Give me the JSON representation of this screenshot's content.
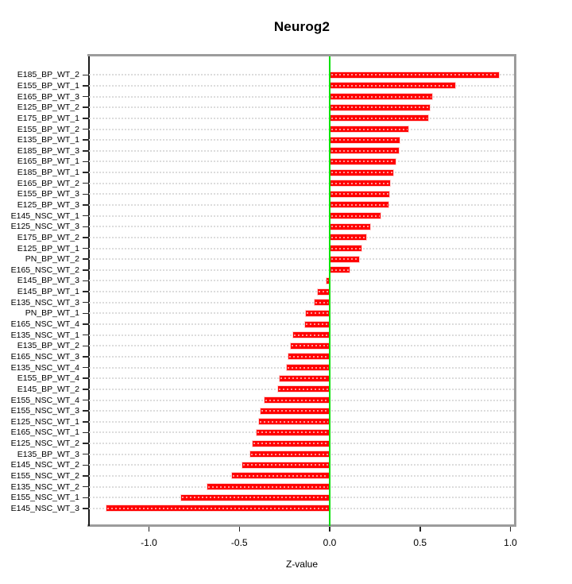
{
  "chart_data": {
    "type": "bar",
    "orientation": "horizontal",
    "title": "Neurog2",
    "xlabel": "Z-value",
    "bar_color": "#ff0000",
    "zero_line_color": "#00e100",
    "grid": "dotted-horizontal",
    "xlim": [
      -1.33,
      1.02
    ],
    "x_tick_values": [
      -1.0,
      -0.5,
      0.0,
      0.5,
      1.0
    ],
    "x_tick_labels": [
      "-1.0",
      "-0.5",
      "0.0",
      "0.5",
      "1.0"
    ],
    "categories": [
      "E185_BP_WT_2",
      "E155_BP_WT_1",
      "E165_BP_WT_3",
      "E125_BP_WT_2",
      "E175_BP_WT_1",
      "E155_BP_WT_2",
      "E135_BP_WT_1",
      "E185_BP_WT_3",
      "E165_BP_WT_1",
      "E185_BP_WT_1",
      "E165_BP_WT_2",
      "E155_BP_WT_3",
      "E125_BP_WT_3",
      "E145_NSC_WT_1",
      "E125_NSC_WT_3",
      "E175_BP_WT_2",
      "E125_BP_WT_1",
      "PN_BP_WT_2",
      "E165_NSC_WT_2",
      "E145_BP_WT_3",
      "E145_BP_WT_1",
      "E135_NSC_WT_3",
      "PN_BP_WT_1",
      "E165_NSC_WT_4",
      "E135_NSC_WT_1",
      "E135_BP_WT_2",
      "E165_NSC_WT_3",
      "E135_NSC_WT_4",
      "E155_BP_WT_4",
      "E145_BP_WT_2",
      "E155_NSC_WT_4",
      "E155_NSC_WT_3",
      "E125_NSC_WT_1",
      "E165_NSC_WT_1",
      "E125_NSC_WT_2",
      "E135_BP_WT_3",
      "E145_NSC_WT_2",
      "E155_NSC_WT_2",
      "E135_NSC_WT_2",
      "E155_NSC_WT_1",
      "E145_NSC_WT_3"
    ],
    "values": [
      0.94,
      0.7,
      0.57,
      0.56,
      0.55,
      0.44,
      0.39,
      0.385,
      0.37,
      0.355,
      0.34,
      0.335,
      0.33,
      0.285,
      0.23,
      0.205,
      0.18,
      0.165,
      0.115,
      -0.02,
      -0.07,
      -0.09,
      -0.135,
      -0.14,
      -0.205,
      -0.22,
      -0.235,
      -0.24,
      -0.28,
      -0.29,
      -0.365,
      -0.385,
      -0.395,
      -0.41,
      -0.43,
      -0.445,
      -0.49,
      -0.545,
      -0.68,
      -0.825,
      -1.24
    ]
  }
}
